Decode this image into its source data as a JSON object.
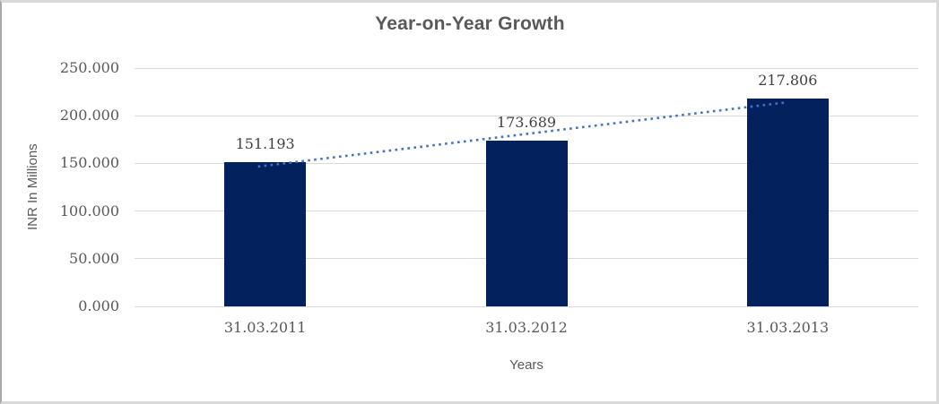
{
  "chart_data": {
    "type": "bar",
    "title": "Year-on-Year Growth",
    "xlabel": "Years",
    "ylabel": "INR In Millions",
    "categories": [
      "31.03.2011",
      "31.03.2012",
      "31.03.2013"
    ],
    "values": [
      151.193,
      173.689,
      217.806
    ],
    "value_labels": [
      "151.193",
      "173.689",
      "217.806"
    ],
    "ylim": [
      0,
      250
    ],
    "yticks": {
      "values": [
        0,
        50,
        100,
        150,
        200,
        250
      ],
      "labels": [
        "0.000",
        "50.000",
        "100.000",
        "150.000",
        "200.000",
        "250.000"
      ]
    },
    "grid": true,
    "legend": false,
    "trendline": {
      "type": "linear",
      "style": "dotted"
    },
    "colors": {
      "bar": "#03215c",
      "trendline": "#4472c4",
      "gridline": "#d9d9d9",
      "axis_text": "#595959",
      "data_label": "#3f3f3f",
      "title_text": "#595959"
    }
  }
}
